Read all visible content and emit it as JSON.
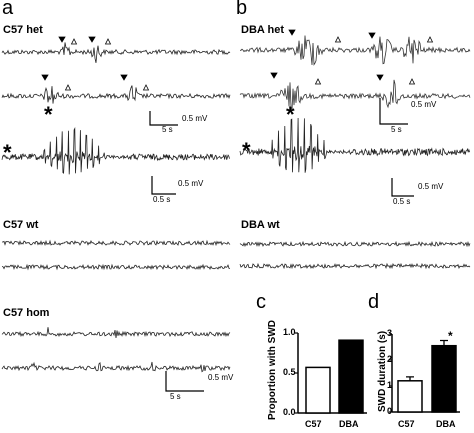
{
  "panels": {
    "a": "a",
    "b": "b",
    "c": "c",
    "d": "d"
  },
  "conditions": {
    "c57_het": "C57 het",
    "dba_het": "DBA het",
    "c57_wt": "C57 wt",
    "dba_wt": "DBA wt",
    "c57_hom": "C57 hom"
  },
  "markers": {
    "asterisk": "*"
  },
  "scale_bars": {
    "a_top_time": "5 s",
    "a_top_volt": "0.5 mV",
    "a_zoom_time": "0.5 s",
    "a_zoom_volt": "0.5 mV",
    "b_top_time": "5 s",
    "b_top_volt": "0.5 mV",
    "b_zoom_time": "0.5 s",
    "b_zoom_volt": "0.5 mV",
    "hom_time": "5 s",
    "hom_volt": "0.5 mV"
  },
  "chart_data": [
    {
      "panel": "c",
      "type": "bar",
      "categories": [
        "C57",
        "DBA"
      ],
      "values": [
        0.57,
        0.91
      ],
      "fill_colors": [
        "#ffffff",
        "#000000"
      ],
      "ylabel": "Proportion with SWD",
      "ylim": [
        0,
        1.0
      ],
      "yticks": [
        "0.0",
        "0.5",
        "1.0"
      ],
      "grid": false
    },
    {
      "panel": "d",
      "type": "bar",
      "categories": [
        "C57",
        "DBA"
      ],
      "values": [
        1.2,
        2.55
      ],
      "errors": [
        0.15,
        0.2
      ],
      "fill_colors": [
        "#ffffff",
        "#000000"
      ],
      "ylabel": "SWD duration (s)",
      "ylim": [
        0,
        3
      ],
      "yticks": [
        "0",
        "1",
        "2",
        "3"
      ],
      "significance": "*",
      "grid": false
    }
  ]
}
